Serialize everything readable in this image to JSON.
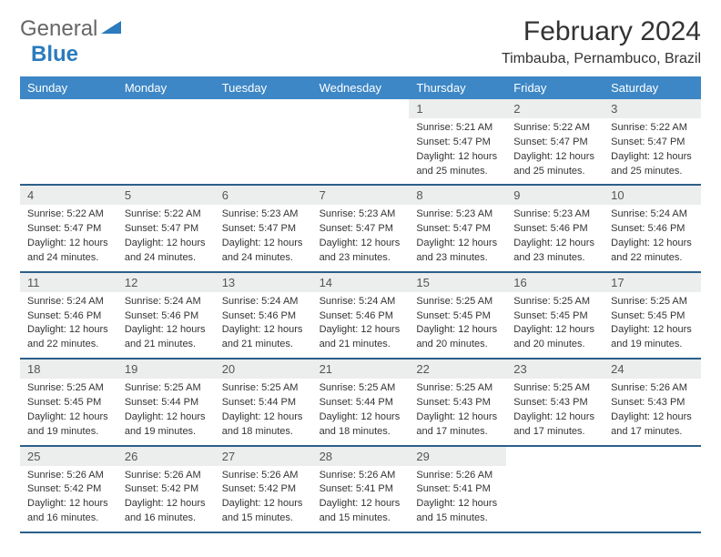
{
  "brand": {
    "part1": "General",
    "part2": "Blue"
  },
  "title": "February 2024",
  "location": "Timbauba, Pernambuco, Brazil",
  "colors": {
    "header_bg": "#3d87c6",
    "header_text": "#ffffff",
    "daynum_bg": "#eceded",
    "week_border": "#2b5f8a",
    "brand_blue": "#2b7bbd",
    "body_text": "#333333"
  },
  "weekdays": [
    "Sunday",
    "Monday",
    "Tuesday",
    "Wednesday",
    "Thursday",
    "Friday",
    "Saturday"
  ],
  "weeks": [
    [
      null,
      null,
      null,
      null,
      {
        "n": "1",
        "sr": "Sunrise: 5:21 AM",
        "ss": "Sunset: 5:47 PM",
        "d1": "Daylight: 12 hours",
        "d2": "and 25 minutes."
      },
      {
        "n": "2",
        "sr": "Sunrise: 5:22 AM",
        "ss": "Sunset: 5:47 PM",
        "d1": "Daylight: 12 hours",
        "d2": "and 25 minutes."
      },
      {
        "n": "3",
        "sr": "Sunrise: 5:22 AM",
        "ss": "Sunset: 5:47 PM",
        "d1": "Daylight: 12 hours",
        "d2": "and 25 minutes."
      }
    ],
    [
      {
        "n": "4",
        "sr": "Sunrise: 5:22 AM",
        "ss": "Sunset: 5:47 PM",
        "d1": "Daylight: 12 hours",
        "d2": "and 24 minutes."
      },
      {
        "n": "5",
        "sr": "Sunrise: 5:22 AM",
        "ss": "Sunset: 5:47 PM",
        "d1": "Daylight: 12 hours",
        "d2": "and 24 minutes."
      },
      {
        "n": "6",
        "sr": "Sunrise: 5:23 AM",
        "ss": "Sunset: 5:47 PM",
        "d1": "Daylight: 12 hours",
        "d2": "and 24 minutes."
      },
      {
        "n": "7",
        "sr": "Sunrise: 5:23 AM",
        "ss": "Sunset: 5:47 PM",
        "d1": "Daylight: 12 hours",
        "d2": "and 23 minutes."
      },
      {
        "n": "8",
        "sr": "Sunrise: 5:23 AM",
        "ss": "Sunset: 5:47 PM",
        "d1": "Daylight: 12 hours",
        "d2": "and 23 minutes."
      },
      {
        "n": "9",
        "sr": "Sunrise: 5:23 AM",
        "ss": "Sunset: 5:46 PM",
        "d1": "Daylight: 12 hours",
        "d2": "and 23 minutes."
      },
      {
        "n": "10",
        "sr": "Sunrise: 5:24 AM",
        "ss": "Sunset: 5:46 PM",
        "d1": "Daylight: 12 hours",
        "d2": "and 22 minutes."
      }
    ],
    [
      {
        "n": "11",
        "sr": "Sunrise: 5:24 AM",
        "ss": "Sunset: 5:46 PM",
        "d1": "Daylight: 12 hours",
        "d2": "and 22 minutes."
      },
      {
        "n": "12",
        "sr": "Sunrise: 5:24 AM",
        "ss": "Sunset: 5:46 PM",
        "d1": "Daylight: 12 hours",
        "d2": "and 21 minutes."
      },
      {
        "n": "13",
        "sr": "Sunrise: 5:24 AM",
        "ss": "Sunset: 5:46 PM",
        "d1": "Daylight: 12 hours",
        "d2": "and 21 minutes."
      },
      {
        "n": "14",
        "sr": "Sunrise: 5:24 AM",
        "ss": "Sunset: 5:46 PM",
        "d1": "Daylight: 12 hours",
        "d2": "and 21 minutes."
      },
      {
        "n": "15",
        "sr": "Sunrise: 5:25 AM",
        "ss": "Sunset: 5:45 PM",
        "d1": "Daylight: 12 hours",
        "d2": "and 20 minutes."
      },
      {
        "n": "16",
        "sr": "Sunrise: 5:25 AM",
        "ss": "Sunset: 5:45 PM",
        "d1": "Daylight: 12 hours",
        "d2": "and 20 minutes."
      },
      {
        "n": "17",
        "sr": "Sunrise: 5:25 AM",
        "ss": "Sunset: 5:45 PM",
        "d1": "Daylight: 12 hours",
        "d2": "and 19 minutes."
      }
    ],
    [
      {
        "n": "18",
        "sr": "Sunrise: 5:25 AM",
        "ss": "Sunset: 5:45 PM",
        "d1": "Daylight: 12 hours",
        "d2": "and 19 minutes."
      },
      {
        "n": "19",
        "sr": "Sunrise: 5:25 AM",
        "ss": "Sunset: 5:44 PM",
        "d1": "Daylight: 12 hours",
        "d2": "and 19 minutes."
      },
      {
        "n": "20",
        "sr": "Sunrise: 5:25 AM",
        "ss": "Sunset: 5:44 PM",
        "d1": "Daylight: 12 hours",
        "d2": "and 18 minutes."
      },
      {
        "n": "21",
        "sr": "Sunrise: 5:25 AM",
        "ss": "Sunset: 5:44 PM",
        "d1": "Daylight: 12 hours",
        "d2": "and 18 minutes."
      },
      {
        "n": "22",
        "sr": "Sunrise: 5:25 AM",
        "ss": "Sunset: 5:43 PM",
        "d1": "Daylight: 12 hours",
        "d2": "and 17 minutes."
      },
      {
        "n": "23",
        "sr": "Sunrise: 5:25 AM",
        "ss": "Sunset: 5:43 PM",
        "d1": "Daylight: 12 hours",
        "d2": "and 17 minutes."
      },
      {
        "n": "24",
        "sr": "Sunrise: 5:26 AM",
        "ss": "Sunset: 5:43 PM",
        "d1": "Daylight: 12 hours",
        "d2": "and 17 minutes."
      }
    ],
    [
      {
        "n": "25",
        "sr": "Sunrise: 5:26 AM",
        "ss": "Sunset: 5:42 PM",
        "d1": "Daylight: 12 hours",
        "d2": "and 16 minutes."
      },
      {
        "n": "26",
        "sr": "Sunrise: 5:26 AM",
        "ss": "Sunset: 5:42 PM",
        "d1": "Daylight: 12 hours",
        "d2": "and 16 minutes."
      },
      {
        "n": "27",
        "sr": "Sunrise: 5:26 AM",
        "ss": "Sunset: 5:42 PM",
        "d1": "Daylight: 12 hours",
        "d2": "and 15 minutes."
      },
      {
        "n": "28",
        "sr": "Sunrise: 5:26 AM",
        "ss": "Sunset: 5:41 PM",
        "d1": "Daylight: 12 hours",
        "d2": "and 15 minutes."
      },
      {
        "n": "29",
        "sr": "Sunrise: 5:26 AM",
        "ss": "Sunset: 5:41 PM",
        "d1": "Daylight: 12 hours",
        "d2": "and 15 minutes."
      },
      null,
      null
    ]
  ]
}
